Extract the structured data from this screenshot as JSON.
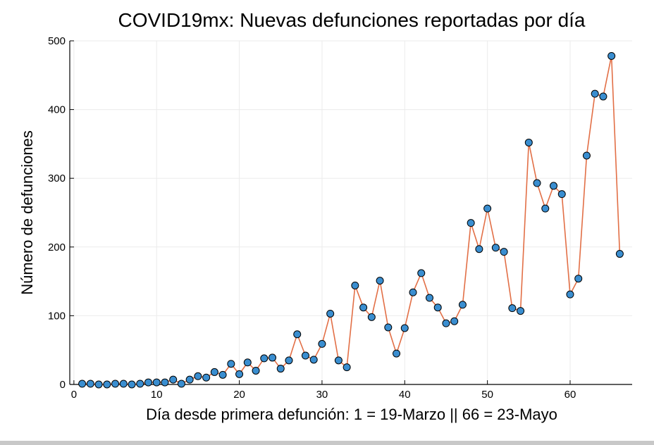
{
  "chart_data": {
    "type": "line",
    "title": "COVID19mx: Nuevas defunciones reportadas por día",
    "xlabel": "Día desde primera defunción: 1 = 19-Marzo || 66 = 23-Mayo",
    "ylabel": "Número de defunciones",
    "xlim": [
      -0.5,
      67.5
    ],
    "ylim": [
      0,
      500
    ],
    "xticks": [
      0,
      10,
      20,
      30,
      40,
      50,
      60
    ],
    "yticks": [
      0,
      100,
      200,
      300,
      400,
      500
    ],
    "grid": true,
    "line_color": "#e26f46",
    "marker_color": "#3a8ed0",
    "series": [
      {
        "x": [
          1,
          2,
          3,
          4,
          5,
          6,
          7,
          8,
          9,
          10,
          11,
          12,
          13,
          14,
          15,
          16,
          17,
          18,
          19,
          20,
          21,
          22,
          23,
          24,
          25,
          26,
          27,
          28,
          29,
          30,
          31,
          32,
          33,
          34,
          35,
          36,
          37,
          38,
          39,
          40,
          41,
          42,
          43,
          44,
          45,
          46,
          47,
          48,
          49,
          50,
          51,
          52,
          53,
          54,
          55,
          56,
          57,
          58,
          59,
          60,
          61,
          62,
          63,
          64,
          65,
          66
        ],
        "values": [
          1,
          1,
          0,
          0,
          1,
          1,
          0,
          1,
          3,
          3,
          3,
          7,
          1,
          7,
          12,
          10,
          18,
          14,
          30,
          15,
          32,
          20,
          38,
          39,
          23,
          35,
          73,
          42,
          36,
          59,
          103,
          35,
          25,
          144,
          112,
          98,
          151,
          83,
          45,
          82,
          134,
          162,
          126,
          112,
          89,
          92,
          116,
          235,
          197,
          256,
          199,
          193,
          111,
          107,
          352,
          293,
          256,
          289,
          277,
          131,
          154,
          333,
          423,
          419,
          478,
          190
        ]
      }
    ]
  }
}
